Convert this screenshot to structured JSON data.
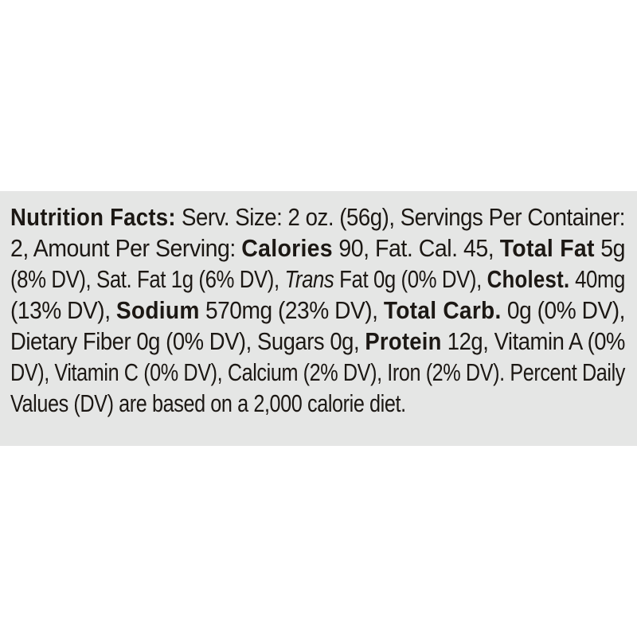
{
  "label": {
    "lines": [
      [
        {
          "t": "Nutrition Facts:",
          "s": "b"
        },
        {
          "t": " Serv. Size: 2 oz. (56g), Servings Per Container:"
        }
      ],
      [
        {
          "t": "2, Amount Per Serving: "
        },
        {
          "t": "Calories",
          "s": "b"
        },
        {
          "t": " 90, Fat. Cal. 45, "
        },
        {
          "t": "Total Fat",
          "s": "b"
        },
        {
          "t": " 5g"
        }
      ],
      [
        {
          "t": "(8% DV), Sat. Fat 1g (6% DV), "
        },
        {
          "t": "Trans",
          "s": "i"
        },
        {
          "t": " Fat 0g (0% DV), "
        },
        {
          "t": "Cholest.",
          "s": "b"
        },
        {
          "t": " 40mg"
        }
      ],
      [
        {
          "t": "(13% DV), "
        },
        {
          "t": "Sodium",
          "s": "b"
        },
        {
          "t": " 570mg (23% DV), "
        },
        {
          "t": "Total Carb.",
          "s": "b"
        },
        {
          "t": " 0g (0% DV),"
        }
      ],
      [
        {
          "t": "Dietary Fiber 0g (0% DV), Sugars 0g, "
        },
        {
          "t": "Protein",
          "s": "b"
        },
        {
          "t": " 12g, Vitamin A (0%"
        }
      ],
      [
        {
          "t": "DV), Vitamin C (0% DV), Calcium (2% DV), Iron (2% DV). Percent Daily"
        }
      ],
      [
        {
          "t": "Values (DV) are based on a 2,000 calorie diet."
        }
      ]
    ]
  },
  "colors": {
    "band": "#e5e6e5",
    "text": "#1c1814",
    "background": "#ffffff"
  }
}
